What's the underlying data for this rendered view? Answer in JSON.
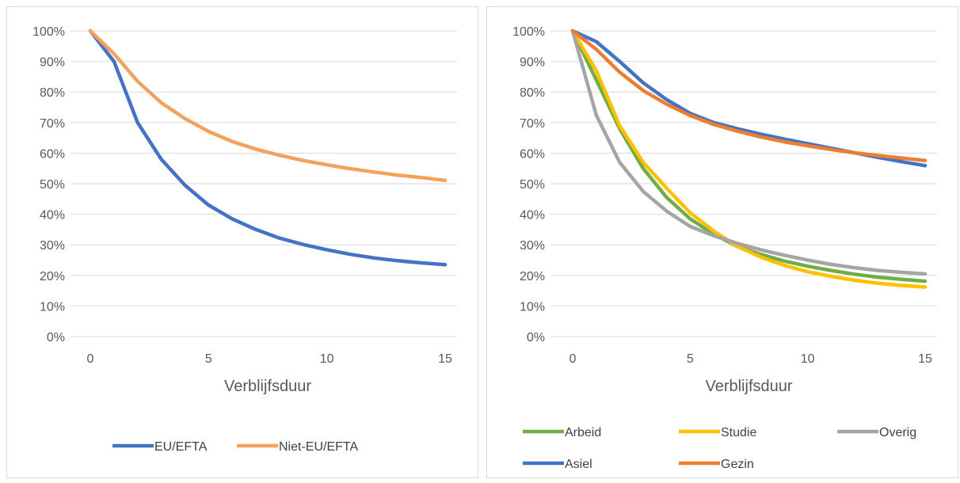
{
  "chart_data": [
    {
      "type": "line",
      "xlabel": "Verblijfsduur",
      "ylabel": "",
      "xlim": [
        0,
        15
      ],
      "ylim": [
        0,
        100
      ],
      "xticks": [
        "0",
        "5",
        "10",
        "15"
      ],
      "yticks": [
        "0%",
        "10%",
        "20%",
        "30%",
        "40%",
        "50%",
        "60%",
        "70%",
        "80%",
        "90%",
        "100%"
      ],
      "grid": true,
      "legend_position": "bottom",
      "x": [
        0,
        1,
        2,
        3,
        4,
        5,
        6,
        7,
        8,
        9,
        10,
        11,
        12,
        13,
        14,
        15
      ],
      "series": [
        {
          "name": "EU/EFTA",
          "color": "#4472c4",
          "values": [
            100,
            90,
            70,
            58,
            49.5,
            43,
            38.5,
            35,
            32.2,
            30.1,
            28.4,
            26.9,
            25.7,
            24.8,
            24.1,
            23.5
          ]
        },
        {
          "name": "Niet-EU/EFTA",
          "color": "#f4a15d",
          "values": [
            100,
            92.5,
            83.5,
            76.5,
            71.3,
            67.1,
            63.8,
            61.3,
            59.3,
            57.6,
            56.2,
            54.9,
            53.8,
            52.8,
            52,
            51.1
          ]
        }
      ]
    },
    {
      "type": "line",
      "xlabel": "Verblijfsduur",
      "ylabel": "",
      "xlim": [
        0,
        15
      ],
      "ylim": [
        0,
        100
      ],
      "xticks": [
        "0",
        "5",
        "10",
        "15"
      ],
      "yticks": [
        "0%",
        "10%",
        "20%",
        "30%",
        "40%",
        "50%",
        "60%",
        "70%",
        "80%",
        "90%",
        "100%"
      ],
      "grid": true,
      "legend_position": "bottom",
      "x": [
        0,
        1,
        2,
        3,
        4,
        5,
        6,
        7,
        8,
        9,
        10,
        11,
        12,
        13,
        14,
        15
      ],
      "series": [
        {
          "name": "Arbeid",
          "color": "#70ad47",
          "values": [
            100,
            84,
            68,
            55,
            45.5,
            38.5,
            33.5,
            29.5,
            26.9,
            24.7,
            23,
            21.6,
            20.4,
            19.4,
            18.7,
            18.1
          ]
        },
        {
          "name": "Studie",
          "color": "#ffc000",
          "values": [
            100,
            87,
            69,
            57,
            48.5,
            40.5,
            34.5,
            29.5,
            26,
            23.3,
            21.2,
            19.7,
            18.4,
            17.4,
            16.7,
            16.2
          ]
        },
        {
          "name": "Overig",
          "color": "#a5a5a5",
          "values": [
            100,
            72.5,
            57,
            47.5,
            41,
            36,
            33,
            30.5,
            28.4,
            26.6,
            25,
            23.6,
            22.5,
            21.6,
            21,
            20.5
          ]
        },
        {
          "name": "Asiel",
          "color": "#4472c4",
          "values": [
            100,
            96.5,
            90,
            83,
            77.5,
            73,
            70,
            68,
            66.2,
            64.6,
            63.1,
            61.6,
            60.1,
            58.6,
            57.2,
            55.9
          ]
        },
        {
          "name": "Gezin",
          "color": "#ed7d31",
          "values": [
            100,
            94,
            86.5,
            80.5,
            76,
            72.3,
            69.4,
            67.2,
            65.3,
            63.7,
            62.4,
            61.2,
            60.1,
            59.2,
            58.4,
            57.6
          ]
        }
      ]
    }
  ]
}
